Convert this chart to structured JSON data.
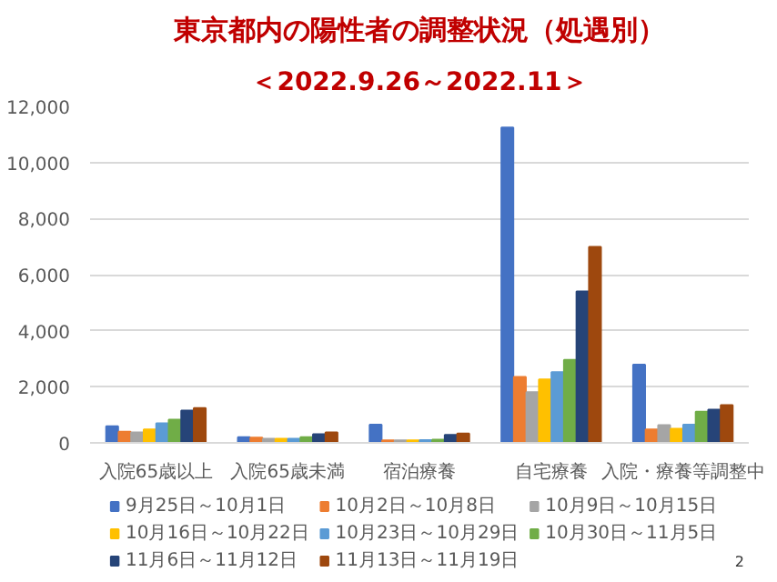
{
  "chart_data": {
    "type": "bar",
    "title": "東京都内の陽性者の調整状況（処遇別）",
    "subtitle": "＜2022.9.26～2022.11＞",
    "categories": [
      "入院65歳以上",
      "入院65歳未満",
      "宿泊療養",
      "自宅療養",
      "入院・療養等調整中"
    ],
    "series": [
      {
        "name": "9月25日～10月1日",
        "color": "#4472c4",
        "values": [
          590,
          200,
          650,
          11250,
          2790
        ]
      },
      {
        "name": "10月2日～10月8日",
        "color": "#ed7d31",
        "values": [
          400,
          190,
          90,
          2350,
          480
        ]
      },
      {
        "name": "10月9日～10月15日",
        "color": "#a5a5a5",
        "values": [
          370,
          150,
          90,
          1810,
          630
        ]
      },
      {
        "name": "10月16日～10月22日",
        "color": "#ffc000",
        "values": [
          480,
          150,
          90,
          2260,
          500
        ]
      },
      {
        "name": "10月23日～10月29日",
        "color": "#5b9bd5",
        "values": [
          700,
          150,
          100,
          2520,
          650
        ]
      },
      {
        "name": "10月30日～11月5日",
        "color": "#70ad47",
        "values": [
          830,
          200,
          110,
          2960,
          1110
        ]
      },
      {
        "name": "11月6日～11月12日",
        "color": "#264478",
        "values": [
          1150,
          310,
          280,
          5400,
          1180
        ]
      },
      {
        "name": "11月13日～11月19日",
        "color": "#9e480e",
        "values": [
          1240,
          370,
          330,
          6990,
          1350
        ]
      }
    ],
    "ylim": [
      0,
      12000
    ],
    "yticks": [
      {
        "value": 0,
        "label": "0"
      },
      {
        "value": 2000,
        "label": "2,000"
      },
      {
        "value": 4000,
        "label": "4,000"
      },
      {
        "value": 6000,
        "label": "6,000"
      },
      {
        "value": 8000,
        "label": "8,000"
      },
      {
        "value": 10000,
        "label": "10,000"
      },
      {
        "value": 12000,
        "label": "12,000"
      }
    ],
    "grid": "y",
    "legend": "bottom",
    "annotations": [
      "2"
    ]
  }
}
